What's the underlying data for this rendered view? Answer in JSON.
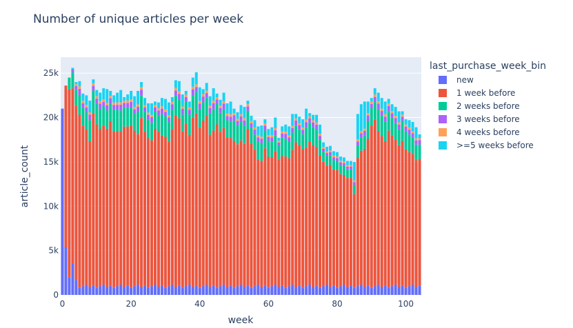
{
  "chart_data": {
    "type": "bar",
    "barmode": "stack",
    "title": "Number of unique articles per week",
    "xlabel": "week",
    "ylabel": "article_count",
    "xlim": [
      -0.5,
      104.5
    ],
    "ylim": [
      0,
      26800
    ],
    "x_ticks": [
      0,
      20,
      40,
      60,
      80,
      100
    ],
    "x_tick_labels": [
      "0",
      "20",
      "40",
      "60",
      "80",
      "100"
    ],
    "y_ticks": [
      0,
      5000,
      10000,
      15000,
      20000,
      25000
    ],
    "y_tick_labels": [
      "0",
      "5k",
      "10k",
      "15k",
      "20k",
      "25k"
    ],
    "legend_title": "last_purchase_week_bin",
    "legend_position": "right",
    "series": [
      {
        "name": "new",
        "color": "#636efa"
      },
      {
        "name": "1 week before",
        "color": "#ef553b"
      },
      {
        "name": "2 weeks before",
        "color": "#00cc96"
      },
      {
        "name": "3 weeks before",
        "color": "#ab63fa"
      },
      {
        "name": "4 weeks before",
        "color": "#ffa15a"
      },
      {
        "name": ">=5 weeks before",
        "color": "#19d3f3"
      }
    ],
    "weeks_first": 0,
    "weeks_last": 104,
    "totals_approx": [
      21000,
      23600,
      24500,
      25600,
      24000,
      24100,
      22700,
      22500,
      21900,
      24300,
      23100,
      22800,
      23300,
      23200,
      23000,
      22500,
      22800,
      23100,
      22300,
      22600,
      23000,
      22400,
      23000,
      24000,
      22200,
      21600,
      21600,
      21800,
      21700,
      22200,
      22100,
      21700,
      22300,
      24200,
      24100,
      22600,
      23000,
      21800,
      24500,
      25100,
      23400,
      23200,
      23900,
      22400,
      23300,
      22700,
      22000,
      22800,
      21600,
      21800,
      21000,
      20600,
      21400,
      21200,
      21900,
      20200,
      19700,
      19000,
      19100,
      19800,
      18700,
      18900,
      20000,
      17700,
      19000,
      19200,
      19000,
      20400,
      20400,
      20100,
      19800,
      21000,
      20500,
      20300,
      20300,
      19200,
      17200,
      16700,
      16800,
      16200,
      16100,
      15600,
      15500,
      15100,
      15100,
      15000,
      20400,
      21500,
      21800,
      21800,
      22200,
      23300,
      22800,
      22200,
      21800,
      22100,
      21500,
      21200,
      20700,
      20700,
      19800,
      19700,
      19500,
      18900,
      18100
    ]
  }
}
